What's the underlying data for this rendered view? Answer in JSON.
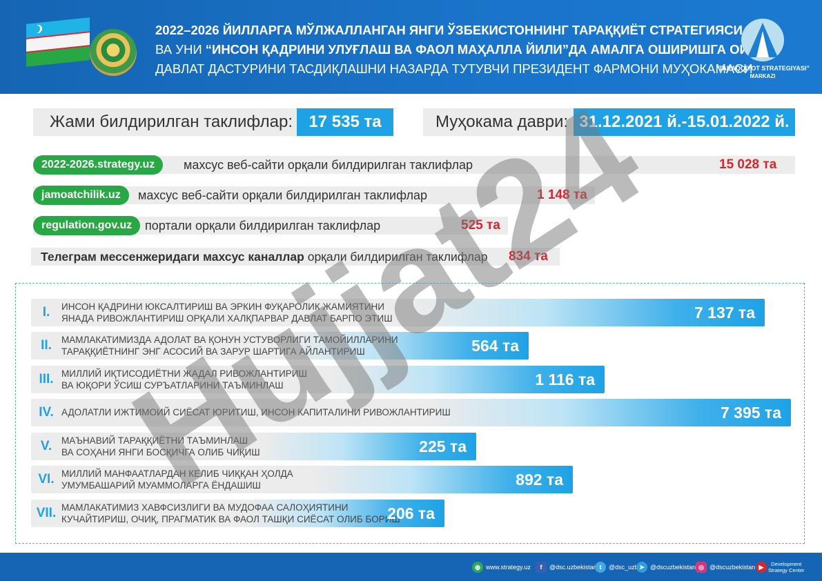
{
  "header": {
    "line1": "2022–2026 ЙИЛЛАРГА МЎЛЖАЛЛАНГАН ЯНГИ ЎЗБЕКИСТОННИНГ ТАРАҚҚИЁТ СТРАТЕГИЯСИ",
    "line2_a": "ВА УНИ ",
    "line2_b": "“ИНСОН ҚАДРИНИ УЛУҒЛАШ ВА ФАОЛ МАҲАЛЛА ЙИЛИ”",
    "line2_c": "ДА АМАЛГА ОШИРИШГА ОИД",
    "line3": "ДАВЛАТ ДАСТУРИНИ ТАСДИҚЛАШНИ НАЗАРДА ТУТУВЧИ ПРЕЗИДЕНТ ФАРМОНИ МУҲОКАМАСИ",
    "logo_line1": "“TARAQQIYOT STRATEGIYASI”",
    "logo_line2": "MARKAZI"
  },
  "totals": {
    "label": "Жами билдирилган таклифлар:",
    "value": "17 535 та",
    "period_label": "Муҳокама даври:",
    "period_value": "31.12.2021 й.-15.01.2022 й."
  },
  "sources": [
    {
      "pill": "2022-2026.strategy.uz",
      "text": "махсус веб-сайти орқали билдирилган таклифлар",
      "value": "15 028 та",
      "count": 15028
    },
    {
      "pill": "jamoatchilik.uz",
      "text": "махсус веб-сайти орқали билдирилган таклифлар",
      "value": "1 148 та",
      "count": 1148
    },
    {
      "pill": "regulation.gov.uz",
      "text": "портали орқали билдирилган таклифлар",
      "value": "525 та",
      "count": 525
    },
    {
      "bold": "Телеграм мессенжеридаги махсус каналлар",
      "text": " орқали билдирилган таклифлар",
      "value": "834 та",
      "count": 834
    }
  ],
  "directions": [
    {
      "roman": "I.",
      "line1": "ИНСОН ҚАДРИНИ ЮКСАЛТИРИШ ВА ЭРКИН ФУҚАРОЛИК ЖАМИЯТИНИ",
      "line2": "ЯНАДА РИВОЖЛАНТИРИШ ОРҚАЛИ ХАЛҚПАРВАР ДАВЛАТ БАРПО ЭТИШ",
      "value": "7 137 та",
      "count": 7137
    },
    {
      "roman": "II.",
      "line1": "МАМЛАКАТИМИЗДА АДОЛАТ ВА ҚОНУН УСТУВОРЛИГИ ТАМОЙИЛЛАРИНИ",
      "line2": "ТАРАҚҚИЁТНИНГ ЭНГ АСОСИЙ ВА ЗАРУР ШАРТИГА АЙЛАНТИРИШ",
      "value": "564 та",
      "count": 564
    },
    {
      "roman": "III.",
      "line1": "МИЛЛИЙ ИҚТИСОДИЁТНИ ЖАДАЛ РИВОЖЛАНТИРИШ",
      "line2": "ВА ЮҚОРИ ЎСИШ СУРЪАТЛАРИНИ ТАЪМИНЛАШ",
      "value": "1 116 та",
      "count": 1116
    },
    {
      "roman": "IV.",
      "line1": "АДОЛАТЛИ ИЖТИМОИЙ СИЁСАТ ЮРИТИШ, ИНСОН КАПИТАЛИНИ РИВОЖЛАНТИРИШ",
      "line2": "",
      "value": "7 395 та",
      "count": 7395
    },
    {
      "roman": "V.",
      "line1": "МАЪНАВИЙ ТАРАҚҚИЁТНИ ТАЪМИНЛАШ",
      "line2": "ВА СОҲАНИ ЯНГИ БОСҚИЧГА ОЛИБ ЧИҚИШ",
      "value": "225 та",
      "count": 225
    },
    {
      "roman": "VI.",
      "line1": "МИЛЛИЙ МАНФААТЛАРДАН КЕЛИБ ЧИҚҚАН ҲОЛДА",
      "line2": "УМУМБАШАРИЙ МУАММОЛАРГА ЁНДАШИШ",
      "value": "892 та",
      "count": 892
    },
    {
      "roman": "VII.",
      "line1": "МАМЛАКАТИМИЗ ХАВФСИЗЛИГИ ВА МУДОФАА САЛОҲИЯТИНИ",
      "line2": "КУЧАЙТИРИШ, ОЧИҚ, ПРАГМАТИК ВА ФАОЛ ТАШҚИ СИЁСАТ ОЛИБ БОРИШ",
      "value": "206 та",
      "count": 206
    }
  ],
  "watermark": "Hujjat24",
  "footer": {
    "website": "www.strategy.uz",
    "facebook": "@dsc.uzbekistan",
    "twitter": "@dsc_uzb",
    "telegram": "@dscuzbekistan",
    "instagram": "@dscuzbekistan",
    "dsc_line1": "Development",
    "dsc_line2": "Strategy Center"
  },
  "colors": {
    "header_blue": "#1565b4",
    "accent_blue": "#1ea2e5",
    "pill_green": "#27a844",
    "number_red": "#d7262e",
    "row_gray": "#ececec"
  }
}
